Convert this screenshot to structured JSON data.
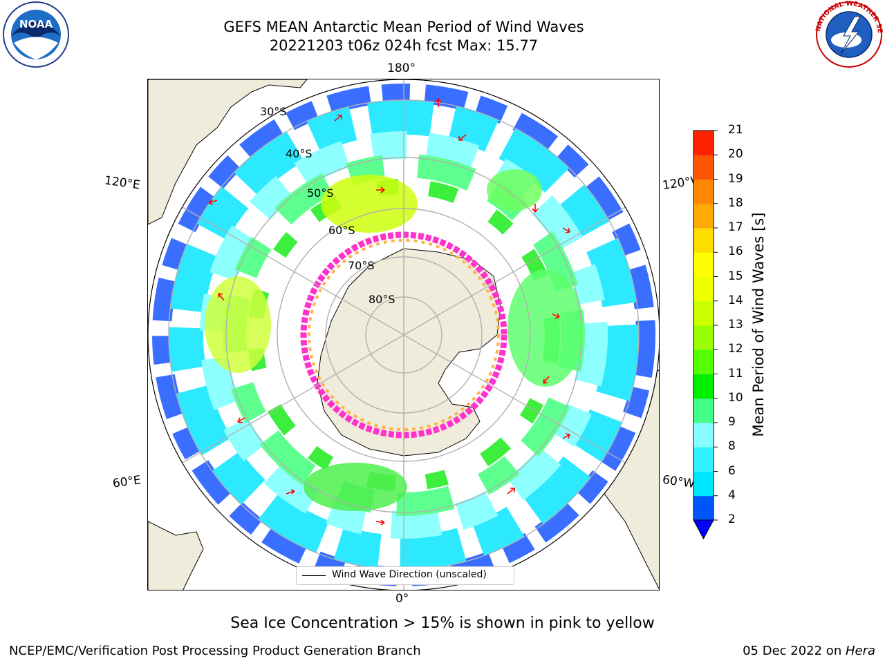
{
  "title": {
    "line1": "GEFS MEAN Antarctic Mean Period of Wind Waves",
    "line2": "20221203 t06z 024h fcst   Max: 15.77"
  },
  "logos": {
    "noaa": {
      "text": "NOAA",
      "icon": "noaa-logo"
    },
    "nws": {
      "text": "NATIONAL WEATHER SERVICE",
      "icon": "nws-logo"
    }
  },
  "map": {
    "projection": "south-polar-stereographic",
    "longitude_labels": {
      "lon_180": "180°",
      "lon_0": "0°",
      "lon_120e": "120°E",
      "lon_60e": "60°E",
      "lon_120w": "120°W",
      "lon_60w": "60°W"
    },
    "latitude_labels": [
      "30°S",
      "40°S",
      "50°S",
      "60°S",
      "70°S",
      "80°S"
    ],
    "legend": {
      "text": "Wind Wave Direction (unscaled)"
    },
    "colors": {
      "land": "#efecdb",
      "grid": "#b0b0b0",
      "ice_outer": "#ff33cc",
      "ice_inner": "#ffb347",
      "arrow": "#ff0000"
    }
  },
  "colorbar": {
    "label": "Mean Period of Wind Waves [s]",
    "ticks": [
      "2",
      "4",
      "6",
      "8",
      "9",
      "10",
      "11",
      "12",
      "13",
      "14",
      "15",
      "16",
      "17",
      "18",
      "19",
      "20",
      "21"
    ],
    "colors": [
      "#0055ff",
      "#00e5ff",
      "#33f2ff",
      "#88ffff",
      "#44ff88",
      "#00ee00",
      "#55ff00",
      "#99ff00",
      "#ccff00",
      "#eeff00",
      "#ffff00",
      "#ffdd00",
      "#ffaa00",
      "#ff8800",
      "#ff5500",
      "#ff2200"
    ],
    "extend_color": "#0000ff"
  },
  "subtitle": "Sea Ice Concentration > 15% is shown in pink to yellow",
  "footer": {
    "left": "NCEP/EMC/Verification Post Processing Product Generation Branch",
    "right_date": "05 Dec 2022 on ",
    "right_machine": "Hera"
  }
}
